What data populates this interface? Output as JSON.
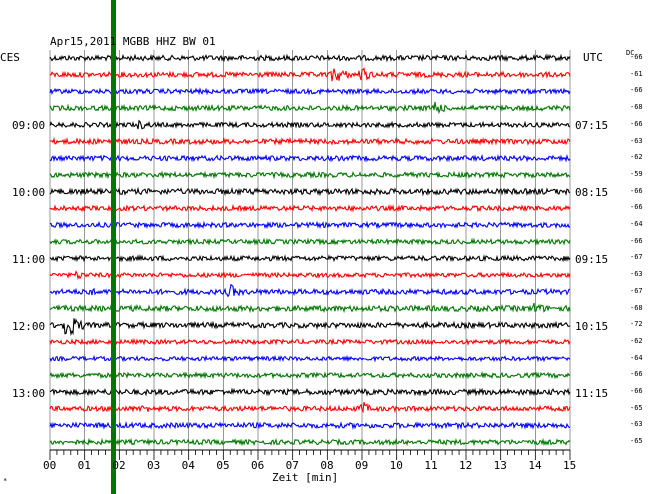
{
  "header": {
    "title": "Apr15,2011   MGBB HHZ BW 01",
    "left_zone": "CES",
    "right_zone": "UTC",
    "dc_label": "DC"
  },
  "trace_colors": [
    "#000000",
    "#ff0000",
    "#0000ff",
    "#007700"
  ],
  "marker_color": "#007700",
  "left_time_labels": [
    "09:00",
    "10:00",
    "11:00",
    "12:00",
    "13:00"
  ],
  "right_time_labels": [
    "07:15",
    "08:15",
    "09:15",
    "10:15",
    "11:15"
  ],
  "dc_values": [
    "-66",
    "-61",
    "-66",
    "-68",
    "-66",
    "-63",
    "-62",
    "-59",
    "-66",
    "-66",
    "-64",
    "-66",
    "-67",
    "-63",
    "-67",
    "-68",
    "-72",
    "-62",
    "-64",
    "-66",
    "-66",
    "-65",
    "-63",
    "-65"
  ],
  "x_tick_labels": [
    "00",
    "01",
    "02",
    "03",
    "04",
    "05",
    "06",
    "07",
    "08",
    "09",
    "10",
    "11",
    "12",
    "13",
    "14",
    "15"
  ],
  "x_axis_label": "Zeit [min]",
  "corner_mark": "*"
}
